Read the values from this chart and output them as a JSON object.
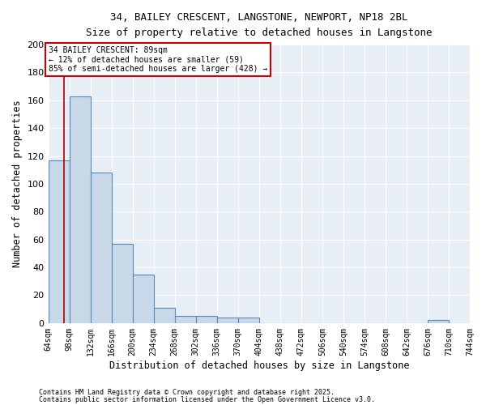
{
  "title": "34, BAILEY CRESCENT, LANGSTONE, NEWPORT, NP18 2BL",
  "subtitle": "Size of property relative to detached houses in Langstone",
  "xlabel": "Distribution of detached houses by size in Langstone",
  "ylabel": "Number of detached properties",
  "bar_edges": [
    64,
    98,
    132,
    166,
    200,
    234,
    268,
    302,
    336,
    370,
    404,
    438,
    472,
    506,
    540,
    574,
    608,
    642,
    676,
    710,
    744
  ],
  "bar_heights": [
    117,
    163,
    108,
    57,
    35,
    11,
    5,
    5,
    4,
    4,
    0,
    0,
    0,
    0,
    0,
    0,
    0,
    0,
    2,
    0
  ],
  "bar_color": "#c8d8e8",
  "bar_edge_color": "#5588bb",
  "background_color": "#e8eef5",
  "red_line_x": 89,
  "annotation_text": "34 BAILEY CRESCENT: 89sqm\n← 12% of detached houses are smaller (59)\n85% of semi-detached houses are larger (428) →",
  "annotation_box_color": "#cc0000",
  "ylim": [
    0,
    200
  ],
  "yticks": [
    0,
    20,
    40,
    60,
    80,
    100,
    120,
    140,
    160,
    180,
    200
  ],
  "footer_line1": "Contains HM Land Registry data © Crown copyright and database right 2025.",
  "footer_line2": "Contains public sector information licensed under the Open Government Licence v3.0."
}
